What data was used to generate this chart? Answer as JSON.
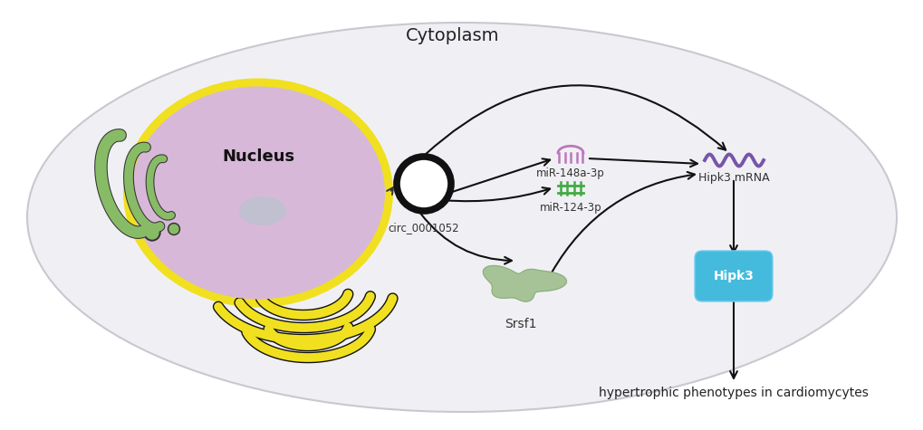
{
  "bg_color": "#ffffff",
  "cell_bg": "#f0f0f4",
  "cell_border": "#c8c8d0",
  "cytoplasm_label": "Cytoplasm",
  "nucleus_label": "Nucleus",
  "circ_label": "circ_0001052",
  "mir148_label": "miR-148a-3p",
  "mir124_label": "miR-124-3p",
  "hipk3mrna_label": "Hipk3 mRNA",
  "srsf1_label": "Srsf1",
  "hipk3_label": "Hipk3",
  "hypertrophic_label": "hypertrophic phenotypes in cardiomycytes",
  "nucleus_color": "#d8b8d8",
  "nucleus_border_color": "#f0e020",
  "nucleolus_color": "#c0c0d0",
  "circ_color": "#111111",
  "mir148_color": "#bb77bb",
  "mir124_color": "#44aa44",
  "hipk3mrna_color": "#7755aa",
  "srsf1_color": "#99bb88",
  "hipk3_bg_color": "#44bbdd",
  "arrow_color": "#111111",
  "green_organelle_color": "#88bb66",
  "yellow_er_color": "#f0e010",
  "yellow_er_border": "#e0c800"
}
